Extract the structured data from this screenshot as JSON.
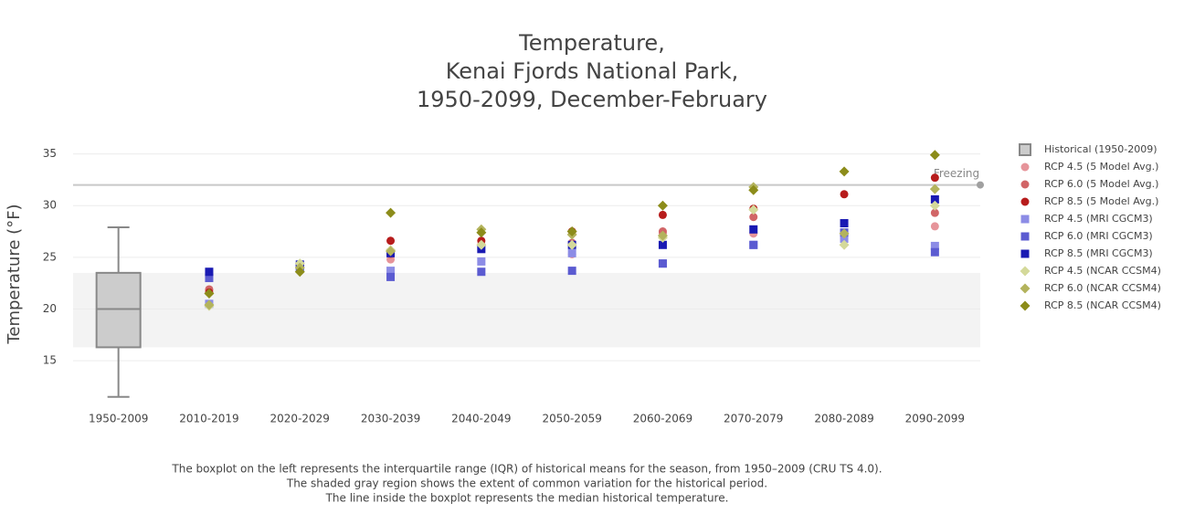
{
  "chart_data": {
    "type": "scatter",
    "title": [
      "Temperature,",
      "Kenai Fjords National Park,",
      "1950-2099, December-February"
    ],
    "y_label": "Temperature (°F)",
    "categories": [
      "1950-2009",
      "2010-2019",
      "2020-2029",
      "2030-2039",
      "2040-2049",
      "2050-2059",
      "2060-2069",
      "2070-2079",
      "2080-2089",
      "2090-2099"
    ],
    "ylim": [
      10.6,
      36.2
    ],
    "yticks": [
      15,
      20,
      25,
      30,
      35
    ],
    "grid": true,
    "box": {
      "name": "Historical (1950-2009)",
      "category": "1950-2009",
      "color": "#cccccc",
      "edge": "#888888",
      "whislo": 11.5,
      "q1": 16.3,
      "median": 20.0,
      "q3": 23.5,
      "whishi": 27.9
    },
    "shaded_range": [
      16.3,
      23.5
    ],
    "reference_line": {
      "value": 32,
      "label": "Freezing"
    },
    "series": [
      {
        "name": "RCP 4.5 (5 Model Avg.)",
        "color": "#e6949a",
        "symbol": "circle",
        "values": [
          null,
          21.8,
          24.3,
          24.8,
          26.2,
          25.3,
          27.3,
          27.3,
          26.8,
          28.0
        ]
      },
      {
        "name": "RCP 6.0 (5 Model Avg.)",
        "color": "#d16567",
        "symbol": "circle",
        "values": [
          null,
          21.9,
          24.0,
          25.3,
          26.2,
          26.4,
          27.5,
          28.9,
          27.1,
          29.3
        ]
      },
      {
        "name": "RCP 8.5 (5 Model Avg.)",
        "color": "#b71c1c",
        "symbol": "circle",
        "values": [
          null,
          21.6,
          24.2,
          26.6,
          26.6,
          27.5,
          29.1,
          29.7,
          31.1,
          32.7
        ]
      },
      {
        "name": "RCP 4.5 (MRI CGCM3)",
        "color": "#8c8ce6",
        "symbol": "square",
        "values": [
          null,
          20.5,
          24.0,
          23.7,
          24.6,
          25.4,
          24.4,
          26.2,
          26.8,
          26.1
        ]
      },
      {
        "name": "RCP 6.0 (MRI CGCM3)",
        "color": "#5b5bd1",
        "symbol": "square",
        "values": [
          null,
          23.0,
          24.1,
          23.1,
          23.6,
          23.7,
          24.4,
          26.2,
          27.4,
          25.5
        ]
      },
      {
        "name": "RCP 8.5 (MRI CGCM3)",
        "color": "#1a1ab3",
        "symbol": "square",
        "values": [
          null,
          23.6,
          24.3,
          25.4,
          25.8,
          26.2,
          26.2,
          27.7,
          28.3,
          30.6
        ]
      },
      {
        "name": "RCP 4.5 (NCAR CCSM4)",
        "color": "#d4d99a",
        "symbol": "diamond",
        "values": [
          null,
          20.3,
          24.4,
          25.7,
          26.2,
          26.2,
          26.9,
          29.6,
          26.2,
          30.0
        ]
      },
      {
        "name": "RCP 6.0 (NCAR CCSM4)",
        "color": "#b3b35c",
        "symbol": "diamond",
        "values": [
          null,
          20.4,
          24.0,
          25.6,
          27.7,
          27.2,
          27.1,
          31.8,
          27.3,
          31.6
        ]
      },
      {
        "name": "RCP 8.5 (NCAR CCSM4)",
        "color": "#8c8c1a",
        "symbol": "diamond",
        "values": [
          null,
          21.5,
          23.6,
          29.3,
          27.4,
          27.5,
          30.0,
          31.5,
          33.3,
          34.9
        ]
      }
    ],
    "notes": [
      "The boxplot on the left represents the interquartile range (IQR) of historical means for the season, from 1950–2009 (CRU TS 4.0).",
      "The shaded gray region shows the extent of common variation for the historical period.",
      "The line inside the boxplot represents the median historical temperature."
    ]
  }
}
